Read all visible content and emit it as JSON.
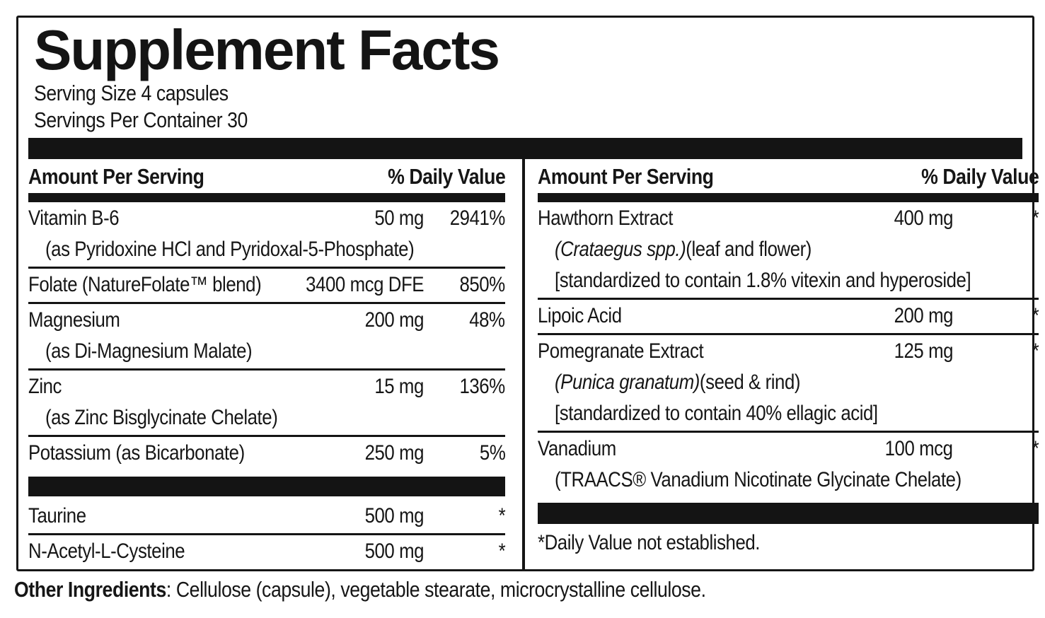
{
  "label": {
    "title": "Supplement Facts",
    "serving_size": "Serving Size 4 capsules",
    "servings_per_container": "Servings Per Container 30",
    "amount_header": "Amount Per Serving",
    "dv_header": "% Daily Value"
  },
  "left": {
    "rows": [
      {
        "name": "Vitamin B-6",
        "amount": "50 mg",
        "dv": "2941%",
        "sub": "(as Pyridoxine HCl and Pyridoxal-5-Phosphate)"
      },
      {
        "name": "Folate (NatureFolate™ blend)",
        "amount": "3400 mcg DFE",
        "dv": "850%"
      },
      {
        "name": "Magnesium",
        "amount": "200 mg",
        "dv": "48%",
        "sub": "(as Di-Magnesium Malate)"
      },
      {
        "name": "Zinc",
        "amount": "15 mg",
        "dv": "136%",
        "sub": "(as Zinc Bisglycinate Chelate)"
      },
      {
        "name": "Potassium (as Bicarbonate)",
        "amount": "250 mg",
        "dv": "5%"
      },
      {
        "name": "Taurine",
        "amount": "500 mg",
        "dv": "*"
      },
      {
        "name": "N-Acetyl-L-Cysteine",
        "amount": "500 mg",
        "dv": "*"
      }
    ]
  },
  "right": {
    "rows": [
      {
        "name": "Hawthorn Extract",
        "amount": "400 mg",
        "dv": "*",
        "sub_italic": "(Crataegus spp.)",
        "sub_rest": "(leaf and flower)",
        "sub2": "[standardized to contain 1.8% vitexin and hyperoside]"
      },
      {
        "name": "Lipoic Acid",
        "amount": "200 mg",
        "dv": "*"
      },
      {
        "name": "Pomegranate Extract",
        "amount": "125 mg",
        "dv": "*",
        "sub_italic": "(Punica granatum)",
        "sub_rest": "(seed & rind)",
        "sub2": "[standardized to contain 40% ellagic acid]"
      },
      {
        "name": "Vanadium",
        "amount": "100 mcg",
        "dv": "*",
        "sub": "(TRAACS® Vanadium Nicotinate Glycinate Chelate)"
      }
    ],
    "footnote": "*Daily Value not established."
  },
  "other": {
    "label": "Other Ingredients",
    "text": ": Cellulose (capsule), vegetable stearate, microcrystalline cellulose."
  }
}
